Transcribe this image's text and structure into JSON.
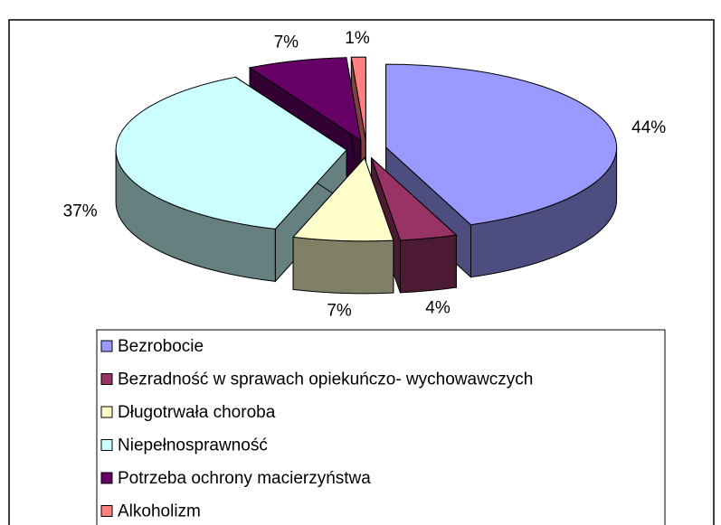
{
  "chart_data": {
    "type": "pie",
    "categories": [
      "Bezrobocie",
      "Bezradność w sprawach opiekuńczo- wychowawczych",
      "Długotrwała choroba",
      "Niepełnosprawność",
      "Potrzeba ochrony macierzyństwa",
      "Alkoholizm"
    ],
    "values": [
      44,
      4,
      7,
      37,
      7,
      1
    ],
    "value_labels": [
      "44%",
      "4%",
      "7%",
      "37%",
      "7%",
      "1%"
    ],
    "colors": [
      "#9999ff",
      "#993366",
      "#ffffcc",
      "#ccffff",
      "#660066",
      "#ff8080"
    ],
    "legend": "bottom"
  }
}
